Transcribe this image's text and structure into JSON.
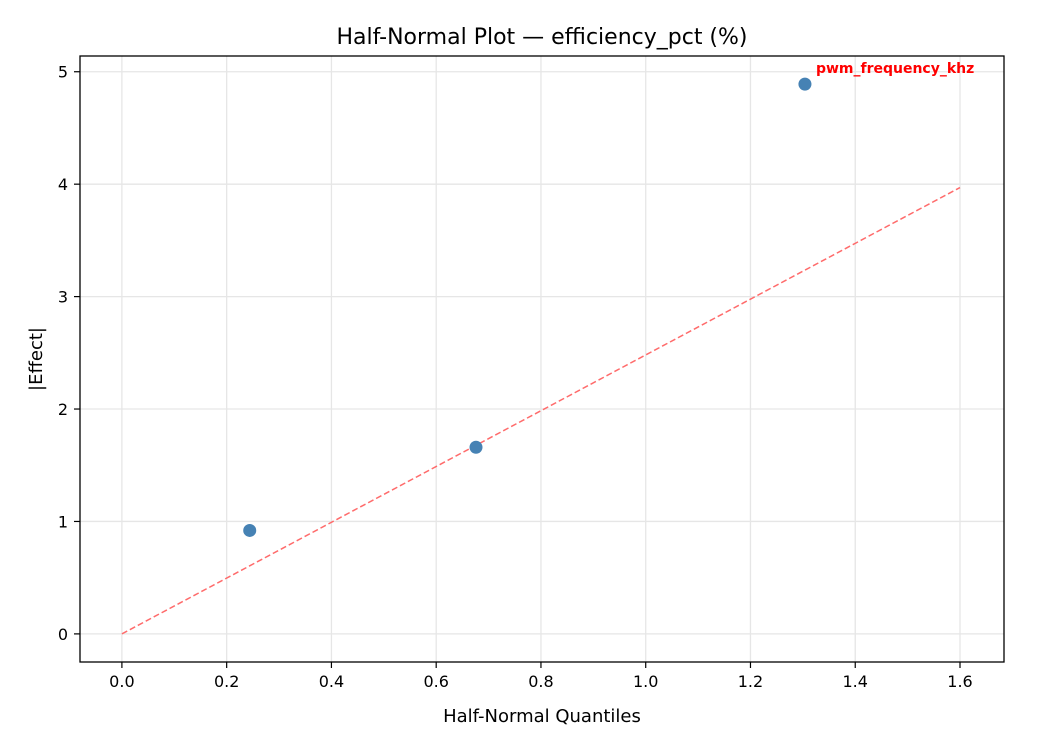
{
  "chart_data": {
    "type": "scatter",
    "title": "Half-Normal Plot — efficiency_pct (%)",
    "xlabel": "Half-Normal Quantiles",
    "ylabel": "|Effect|",
    "xlim": [
      -0.08,
      1.684
    ],
    "ylim": [
      -0.25,
      5.14
    ],
    "xticks": [
      0.0,
      0.2,
      0.4,
      0.6,
      0.8,
      1.0,
      1.2,
      1.4,
      1.6
    ],
    "xtick_labels": [
      "0.0",
      "0.2",
      "0.4",
      "0.6",
      "0.8",
      "1.0",
      "1.2",
      "1.4",
      "1.6"
    ],
    "yticks": [
      0,
      1,
      2,
      3,
      4,
      5
    ],
    "ytick_labels": [
      "0",
      "1",
      "2",
      "3",
      "4",
      "5"
    ],
    "grid": true,
    "points": [
      {
        "x": 0.244,
        "y": 0.92
      },
      {
        "x": 0.676,
        "y": 1.66
      },
      {
        "x": 1.304,
        "y": 4.89,
        "label": "pwm_frequency_khz"
      }
    ],
    "reference_line": {
      "x": [
        0.0,
        1.6
      ],
      "y": [
        0.0,
        3.97
      ],
      "style": "dashed"
    },
    "colors": {
      "points": "#4682b4",
      "reference_line": "#ff6b6b",
      "annotation": "#ff0000",
      "grid": "#e6e6e6"
    }
  }
}
